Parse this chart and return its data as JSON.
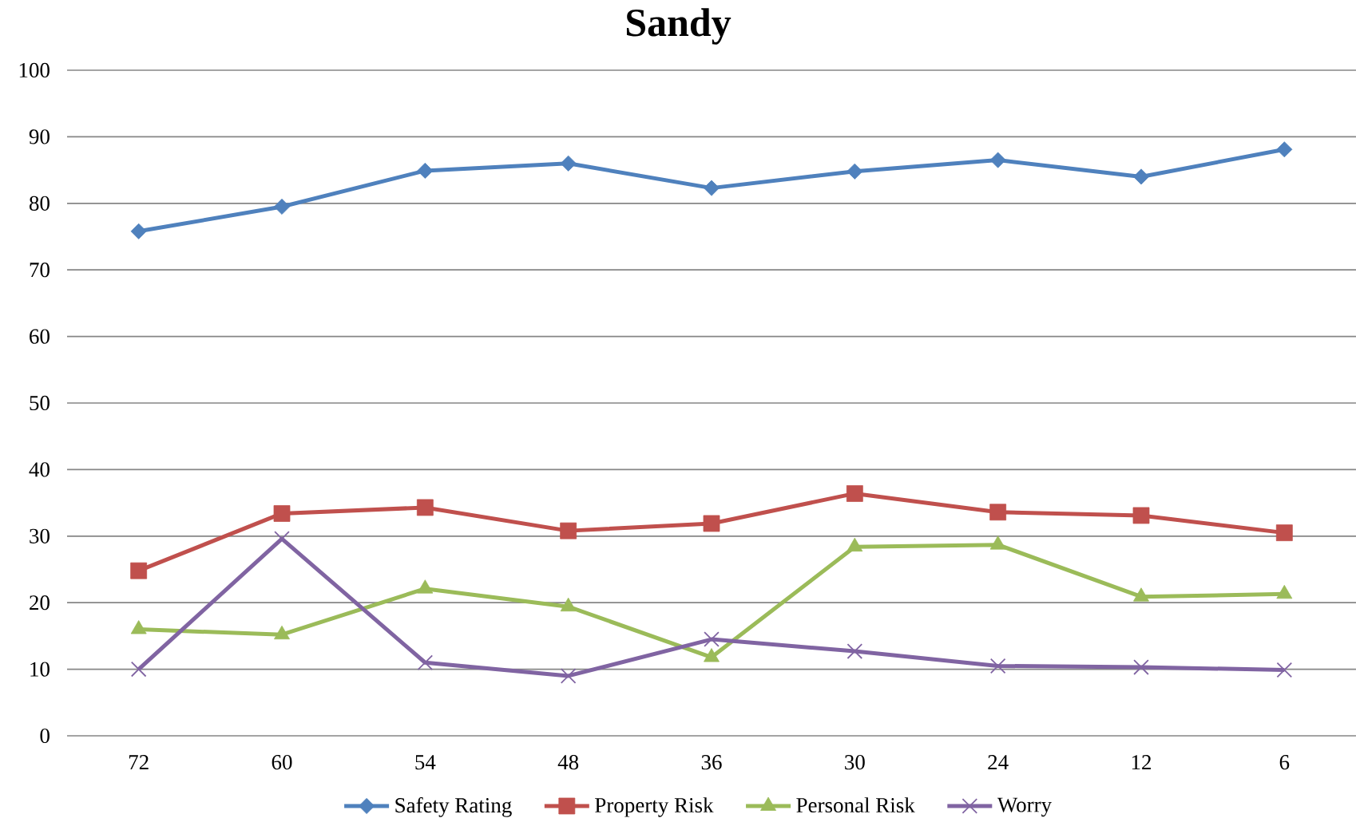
{
  "chart_data": {
    "type": "line",
    "title": "Sandy",
    "categories": [
      "72",
      "60",
      "54",
      "48",
      "36",
      "30",
      "24",
      "12",
      "6"
    ],
    "series": [
      {
        "name": "Safety Rating",
        "color": "#4f81bd",
        "marker": "diamond",
        "values": [
          75.8,
          79.5,
          84.9,
          86.0,
          82.3,
          84.8,
          86.5,
          84.0,
          88.1
        ]
      },
      {
        "name": "Property Risk",
        "color": "#c0504d",
        "marker": "square",
        "values": [
          24.8,
          33.4,
          34.3,
          30.8,
          31.9,
          36.4,
          33.6,
          33.1,
          30.5
        ]
      },
      {
        "name": "Personal Risk",
        "color": "#9bbb59",
        "marker": "triangle",
        "values": [
          16.0,
          15.2,
          22.1,
          19.4,
          11.8,
          28.4,
          28.7,
          20.9,
          21.3
        ]
      },
      {
        "name": "Worry",
        "color": "#8064a2",
        "marker": "cross",
        "values": [
          10.0,
          29.6,
          11.0,
          9.0,
          14.5,
          12.7,
          10.5,
          10.3,
          9.9
        ]
      }
    ],
    "ylim": [
      0,
      100
    ],
    "yticks": [
      0,
      10,
      20,
      30,
      40,
      50,
      60,
      70,
      80,
      90,
      100
    ],
    "grid": "y",
    "legend": "bottom"
  }
}
